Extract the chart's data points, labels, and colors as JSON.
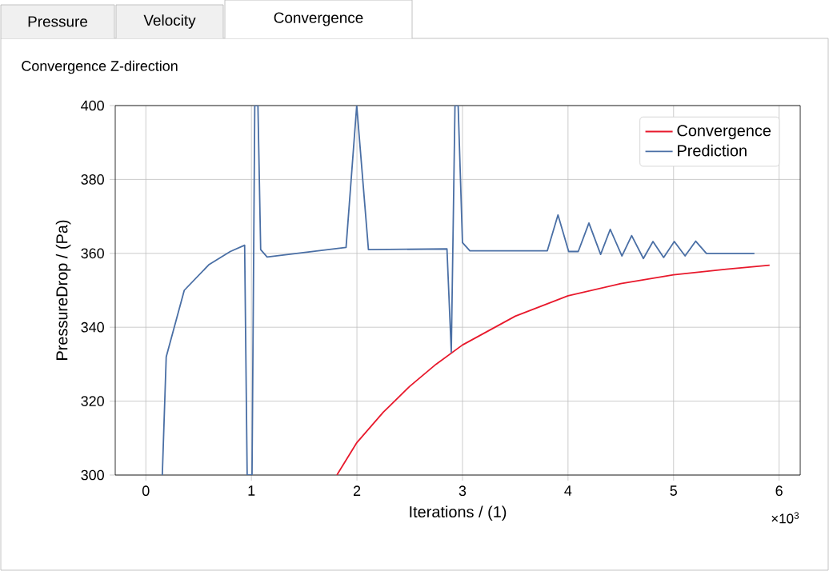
{
  "chart_data": {
    "type": "line",
    "title": "Convergence Z-direction",
    "xlabel": "Iterations / (1)",
    "ylabel": "PressureDrop / (Pa)",
    "annotations": [
      "×10$^{3}$",
      "Pressure",
      "Velocity",
      "Convergence"
    ],
    "xlim": [
      -0.29,
      6.2
    ],
    "ylim": [
      300,
      400
    ],
    "xticks": [
      0,
      1,
      2,
      3,
      4,
      5,
      6
    ],
    "yticks": [
      300,
      320,
      340,
      360,
      380,
      400
    ],
    "grid": true,
    "legend": "top right",
    "series": [
      {
        "name": "Convergence",
        "color": "#e8192c",
        "x": [
          1.81,
          2.0,
          2.25,
          2.5,
          2.75,
          3.0,
          3.5,
          4.0,
          4.5,
          5.0,
          5.5,
          5.91
        ],
        "values": [
          300,
          308.8,
          317,
          324,
          330,
          335.2,
          343,
          348.5,
          351.8,
          354.2,
          355.7,
          356.8
        ]
      },
      {
        "name": "Prediction",
        "color": "#4a6fa5",
        "x": [
          0.156,
          0.193,
          0.364,
          0.6,
          0.8,
          0.936,
          0.96,
          1.006,
          1.032,
          1.062,
          1.088,
          1.149,
          1.897,
          1.998,
          2.109,
          2.853,
          2.894,
          2.929,
          2.959,
          3.0,
          3.07,
          3.804,
          3.905,
          4.006,
          4.097,
          4.198,
          4.309,
          4.4,
          4.511,
          4.603,
          4.714,
          4.805,
          4.906,
          5.007,
          5.109,
          5.21,
          5.311,
          5.766
        ],
        "values": [
          300,
          332,
          350,
          357,
          360.5,
          362.2,
          300,
          300,
          400,
          400,
          361,
          359,
          361.6,
          400,
          361,
          361.2,
          333.3,
          400,
          400,
          362.9,
          360.7,
          360.7,
          370.4,
          360.5,
          360.5,
          368.2,
          359.7,
          366.5,
          359.3,
          364.8,
          358.6,
          363.2,
          358.9,
          363.2,
          359.3,
          363.3,
          360,
          360
        ]
      }
    ]
  }
}
